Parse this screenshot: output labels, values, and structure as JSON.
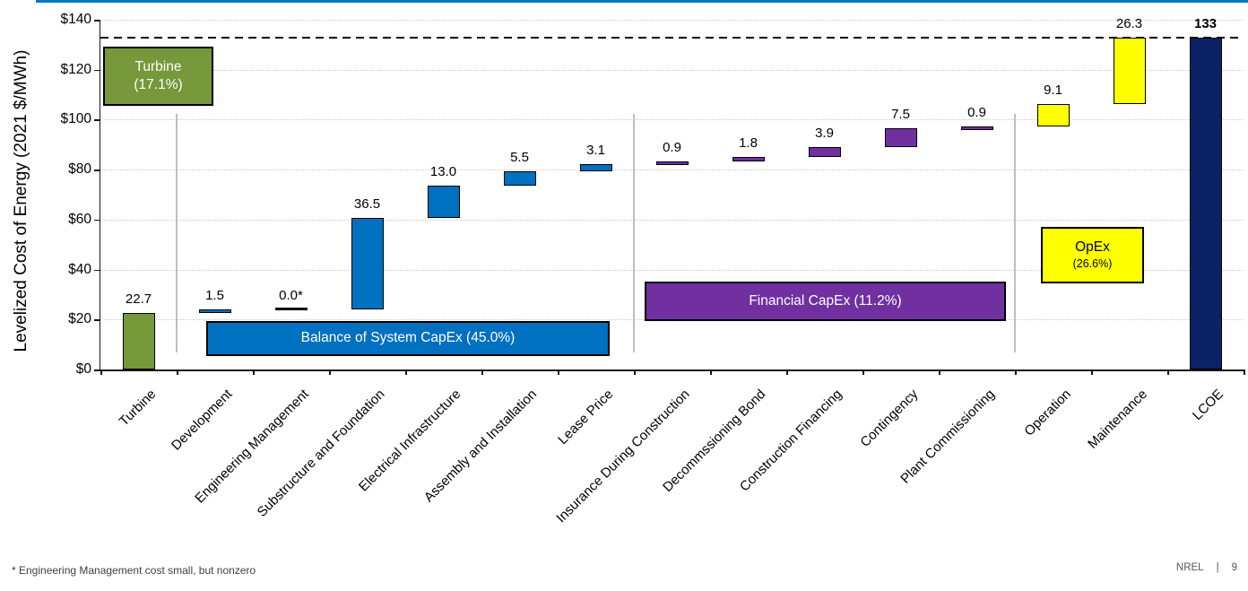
{
  "page": {
    "accent_line_color": "#0079C2",
    "footnote": "* Engineering Management cost small, but nonzero",
    "footer": {
      "org": "NREL",
      "separator": "|",
      "page_number": "9"
    }
  },
  "chart_data": {
    "type": "bar",
    "subtype": "waterfall",
    "title": "",
    "xlabel": "",
    "ylabel": "Levelized Cost of Energy (2021 $/MWh)",
    "ylim": [
      0,
      140
    ],
    "ytick_step": 20,
    "ytick_labels": [
      "$0",
      "$20",
      "$40",
      "$60",
      "$80",
      "$100",
      "$120",
      "$140"
    ],
    "grid": "horizontal-dotted",
    "legend": "none",
    "reference_line": {
      "value": 133,
      "style": "dashed",
      "color": "#000000"
    },
    "categories": [
      "Turbine",
      "Development",
      "Engineering Management",
      "Substructure and Foundation",
      "Electrical Infrastructure",
      "Assembly and Installation",
      "Lease Price",
      "Insurance During Construction",
      "Decommssioning Bond",
      "Construction Financing",
      "Contingency",
      "Plant Commissioning",
      "Operation",
      "Maintenance",
      "LCOE"
    ],
    "values": [
      22.7,
      1.5,
      0.0,
      36.5,
      13.0,
      5.5,
      3.1,
      0.9,
      1.8,
      3.9,
      7.5,
      0.9,
      9.1,
      26.3,
      133
    ],
    "value_labels": [
      "22.7",
      "1.5",
      "0.0*",
      "36.5",
      "13.0",
      "5.5",
      "3.1",
      "0.9",
      "1.8",
      "3.9",
      "7.5",
      "0.9",
      "9.1",
      "26.3",
      "133"
    ],
    "bar_types": [
      "step",
      "step",
      "step",
      "step",
      "step",
      "step",
      "step",
      "step",
      "step",
      "step",
      "step",
      "step",
      "step",
      "step",
      "total"
    ],
    "bar_colors": [
      "#76983B",
      "#0070C0",
      "#0070C0",
      "#0070C0",
      "#0070C0",
      "#0070C0",
      "#0070C0",
      "#7030A0",
      "#7030A0",
      "#7030A0",
      "#7030A0",
      "#7030A0",
      "#FFFF00",
      "#FFFF00",
      "#0B2265"
    ],
    "segment_groups": [
      {
        "lines": [
          "Turbine",
          "(17.1%)"
        ],
        "color": "#76983B",
        "text_color": "#FFFFFF",
        "small_second_line": false
      },
      {
        "lines": [
          "Balance of System CapEx (45.0%)"
        ],
        "color": "#0070C0",
        "text_color": "#FFFFFF",
        "small_second_line": false
      },
      {
        "lines": [
          "Financial CapEx (11.2%)"
        ],
        "color": "#7030A0",
        "text_color": "#FFFFFF",
        "small_second_line": false
      },
      {
        "lines": [
          "OpEx",
          "(26.6%)"
        ],
        "color": "#FFFF00",
        "text_color": "#000000",
        "small_second_line": true
      }
    ]
  }
}
